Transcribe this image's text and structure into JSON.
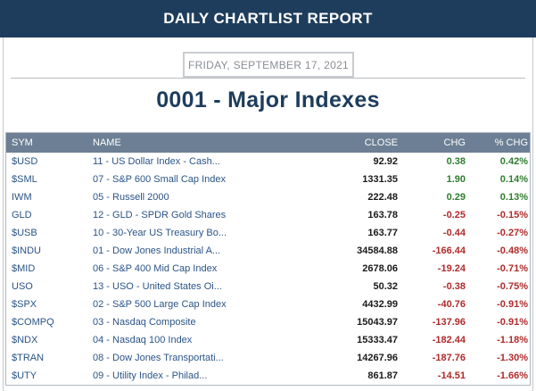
{
  "header": {
    "title": "DAILY CHARTLIST REPORT"
  },
  "report": {
    "date": "FRIDAY, SEPTEMBER 17, 2021",
    "title": "0001 - Major Indexes"
  },
  "table": {
    "columns": [
      "SYM",
      "NAME",
      "CLOSE",
      "CHG",
      "% CHG"
    ],
    "rows": [
      {
        "sym": "$USD",
        "name": "11 - US Dollar Index - Cash...",
        "close": "92.92",
        "chg": "0.38",
        "pct": "0.42%",
        "dir": "pos"
      },
      {
        "sym": "$SML",
        "name": "07 - S&P 600 Small Cap Index",
        "close": "1331.35",
        "chg": "1.90",
        "pct": "0.14%",
        "dir": "pos"
      },
      {
        "sym": "IWM",
        "name": "05 - Russell 2000",
        "close": "222.48",
        "chg": "0.29",
        "pct": "0.13%",
        "dir": "pos"
      },
      {
        "sym": "GLD",
        "name": "12 - GLD - SPDR Gold Shares",
        "close": "163.78",
        "chg": "-0.25",
        "pct": "-0.15%",
        "dir": "neg"
      },
      {
        "sym": "$USB",
        "name": "10 - 30-Year US Treasury Bo...",
        "close": "163.77",
        "chg": "-0.44",
        "pct": "-0.27%",
        "dir": "neg"
      },
      {
        "sym": "$INDU",
        "name": "01 - Dow Jones Industrial A...",
        "close": "34584.88",
        "chg": "-166.44",
        "pct": "-0.48%",
        "dir": "neg"
      },
      {
        "sym": "$MID",
        "name": "06 - S&P 400 Mid Cap Index",
        "close": "2678.06",
        "chg": "-19.24",
        "pct": "-0.71%",
        "dir": "neg"
      },
      {
        "sym": "USO",
        "name": "13 - USO - United States Oi...",
        "close": "50.32",
        "chg": "-0.38",
        "pct": "-0.75%",
        "dir": "neg"
      },
      {
        "sym": "$SPX",
        "name": "02 - S&P 500 Large Cap Index",
        "close": "4432.99",
        "chg": "-40.76",
        "pct": "-0.91%",
        "dir": "neg"
      },
      {
        "sym": "$COMPQ",
        "name": "03 - Nasdaq Composite",
        "close": "15043.97",
        "chg": "-137.96",
        "pct": "-0.91%",
        "dir": "neg"
      },
      {
        "sym": "$NDX",
        "name": "04 - Nasdaq 100 Index",
        "close": "15333.47",
        "chg": "-182.44",
        "pct": "-1.18%",
        "dir": "neg"
      },
      {
        "sym": "$TRAN",
        "name": "08 - Dow Jones Transportati...",
        "close": "14267.96",
        "chg": "-187.76",
        "pct": "-1.30%",
        "dir": "neg"
      },
      {
        "sym": "$UTY",
        "name": "09 - Utility Index - Philad...",
        "close": "861.87",
        "chg": "-14.51",
        "pct": "-1.66%",
        "dir": "neg"
      }
    ]
  },
  "colors": {
    "header_bg": "#1e3d5c",
    "table_header_bg": "#6c7f94",
    "symbol_text": "#2a5486",
    "positive": "#2e7d2e",
    "negative": "#b02a2a"
  }
}
